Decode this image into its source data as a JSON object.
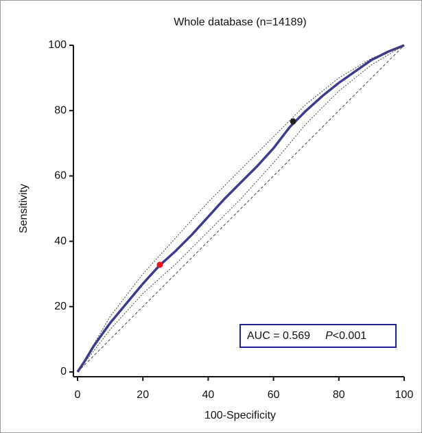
{
  "chart_data": {
    "type": "line",
    "title": "Whole database (n=14189)",
    "x_label": "100-Specificity",
    "y_label": "Sensitivity",
    "xlim": [
      0,
      100
    ],
    "ylim": [
      0,
      100
    ],
    "xticks": [
      0,
      20,
      40,
      60,
      80,
      100
    ],
    "yticks": [
      0,
      20,
      40,
      60,
      80,
      100
    ],
    "series": [
      {
        "color": "#3b3b8f",
        "style": "solid",
        "x": [
          0,
          2,
          5,
          10,
          15,
          20,
          25,
          30,
          35,
          40,
          45,
          50,
          55,
          60,
          65,
          70,
          75,
          80,
          85,
          90,
          95,
          100
        ],
        "values": [
          0,
          3,
          8,
          15,
          21,
          27,
          32.5,
          37,
          42,
          47.5,
          53,
          58,
          63,
          68.5,
          75,
          80,
          84.5,
          88.5,
          92,
          95.5,
          98,
          100
        ]
      },
      {
        "color": "#444444",
        "style": "dotted",
        "x": [
          0,
          10,
          20,
          30,
          40,
          50,
          60,
          70,
          80,
          90,
          100
        ],
        "values": [
          0,
          17,
          30,
          41,
          52,
          62,
          72,
          82,
          90,
          96,
          100
        ]
      },
      {
        "color": "#444444",
        "style": "dotted",
        "x": [
          0,
          10,
          20,
          30,
          40,
          50,
          60,
          70,
          80,
          90,
          100
        ],
        "values": [
          0,
          13,
          24,
          33,
          43,
          53,
          64,
          76,
          86,
          94,
          100
        ]
      },
      {
        "color": "#444444",
        "style": "dashed",
        "x": [
          0,
          100
        ],
        "values": [
          0,
          100
        ]
      }
    ],
    "points": {
      "x": [
        25.2,
        66
      ],
      "values": [
        32.8,
        76.7
      ],
      "colors": [
        "#e8141c",
        "#222222"
      ]
    },
    "annotation": {
      "auc_text": "AUC = 0.569",
      "p_symbol": "P",
      "p_text": "<0.001",
      "color": "#1f1f9a"
    }
  }
}
